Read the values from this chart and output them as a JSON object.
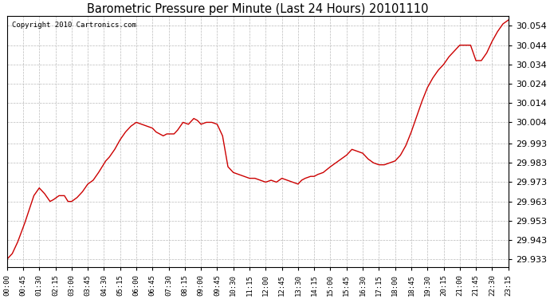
{
  "title": "Barometric Pressure per Minute (Last 24 Hours) 20101110",
  "copyright": "Copyright 2010 Cartronics.com",
  "line_color": "#cc0000",
  "background_color": "#ffffff",
  "grid_color": "#bbbbbb",
  "ylim_low": 29.929,
  "ylim_high": 30.059,
  "yticks": [
    29.933,
    29.943,
    29.953,
    29.963,
    29.973,
    29.983,
    29.993,
    30.004,
    30.014,
    30.024,
    30.034,
    30.044,
    30.054
  ],
  "xtick_positions": [
    0,
    45,
    90,
    135,
    180,
    225,
    270,
    315,
    360,
    405,
    450,
    495,
    540,
    585,
    630,
    675,
    720,
    765,
    810,
    855,
    900,
    945,
    990,
    1035,
    1080,
    1125,
    1170,
    1215,
    1260,
    1305,
    1350,
    1395
  ],
  "xtick_labels": [
    "00:00",
    "00:45",
    "01:30",
    "02:15",
    "03:00",
    "03:45",
    "04:30",
    "05:15",
    "06:00",
    "06:45",
    "07:30",
    "08:15",
    "09:00",
    "09:45",
    "10:30",
    "11:15",
    "12:00",
    "12:45",
    "13:30",
    "14:15",
    "15:00",
    "15:45",
    "16:30",
    "17:15",
    "18:00",
    "18:45",
    "19:30",
    "20:15",
    "21:00",
    "21:45",
    "22:30",
    "23:15"
  ],
  "x": [
    0,
    15,
    30,
    50,
    75,
    90,
    105,
    120,
    130,
    145,
    160,
    170,
    180,
    195,
    210,
    225,
    240,
    255,
    265,
    275,
    285,
    300,
    315,
    330,
    345,
    360,
    375,
    390,
    405,
    415,
    425,
    435,
    445,
    455,
    465,
    475,
    490,
    505,
    520,
    530,
    540,
    555,
    570,
    585,
    600,
    615,
    630,
    645,
    660,
    675,
    690,
    705,
    720,
    735,
    750,
    765,
    780,
    795,
    810,
    820,
    830,
    845,
    855,
    865,
    880,
    900,
    915,
    930,
    945,
    960,
    975,
    990,
    1005,
    1020,
    1035,
    1050,
    1065,
    1080,
    1095,
    1110,
    1125,
    1140,
    1155,
    1170,
    1185,
    1200,
    1215,
    1230,
    1245,
    1260,
    1275,
    1290,
    1305,
    1320,
    1335,
    1350,
    1365,
    1380,
    1395
  ],
  "y": [
    29.933,
    29.936,
    29.942,
    29.952,
    29.966,
    29.97,
    29.967,
    29.963,
    29.964,
    29.966,
    29.966,
    29.963,
    29.963,
    29.965,
    29.968,
    29.972,
    29.974,
    29.978,
    29.981,
    29.984,
    29.986,
    29.99,
    29.995,
    29.999,
    30.002,
    30.004,
    30.003,
    30.002,
    30.001,
    29.999,
    29.998,
    29.997,
    29.998,
    29.998,
    29.998,
    30.0,
    30.004,
    30.003,
    30.006,
    30.005,
    30.003,
    30.004,
    30.004,
    30.003,
    29.997,
    29.981,
    29.978,
    29.977,
    29.976,
    29.975,
    29.975,
    29.974,
    29.973,
    29.974,
    29.973,
    29.975,
    29.974,
    29.973,
    29.972,
    29.974,
    29.975,
    29.976,
    29.976,
    29.977,
    29.978,
    29.981,
    29.983,
    29.985,
    29.987,
    29.99,
    29.989,
    29.988,
    29.985,
    29.983,
    29.982,
    29.982,
    29.983,
    29.984,
    29.987,
    29.992,
    29.999,
    30.007,
    30.015,
    30.022,
    30.027,
    30.031,
    30.034,
    30.038,
    30.041,
    30.044,
    30.044,
    30.044,
    30.036,
    30.036,
    30.04,
    30.046,
    30.051,
    30.055,
    30.057
  ]
}
